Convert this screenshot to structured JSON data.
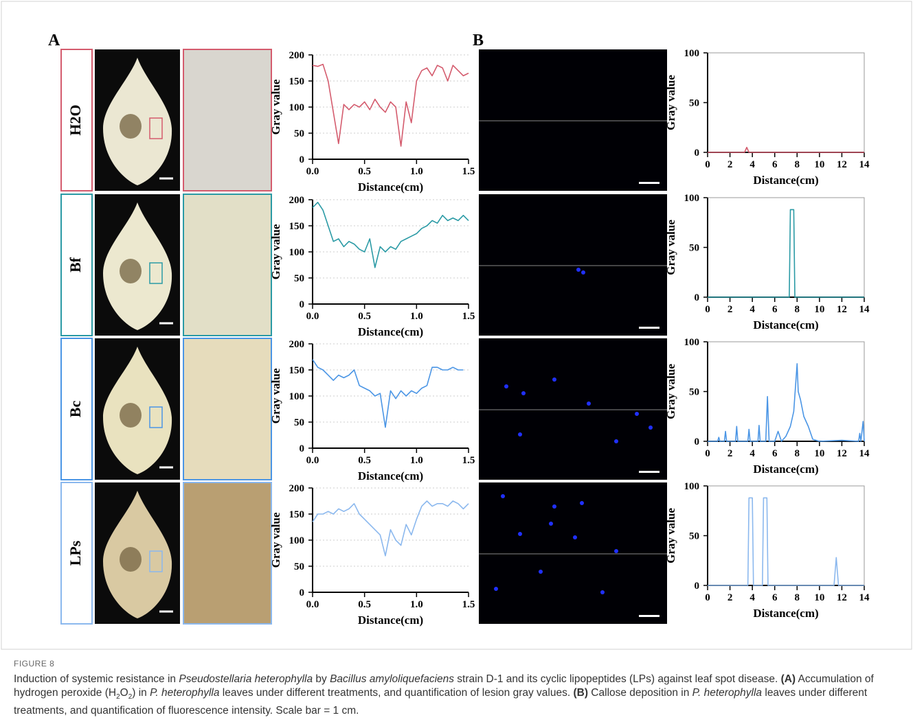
{
  "panel_labels": [
    "A",
    "B"
  ],
  "rows": [
    "H2O",
    "Bf",
    "Bc",
    "LPs"
  ],
  "chart_data": [
    {
      "type": "line",
      "xlabel": "Distance(cm)",
      "ylabel": "Gray value",
      "xlim": [
        0,
        1.5
      ],
      "ylim": [
        0,
        200
      ],
      "xticks": [
        {
          "value": 0,
          "label": "0.0"
        },
        0.5,
        {
          "value": 1,
          "label": "1.0"
        },
        1.5
      ],
      "yticks": [
        0,
        50,
        100,
        150,
        200
      ],
      "grid": true,
      "box": false,
      "x": [
        0,
        0.05,
        0.1,
        0.15,
        0.2,
        0.25,
        0.3,
        0.35,
        0.4,
        0.45,
        0.5,
        0.55,
        0.6,
        0.65,
        0.7,
        0.75,
        0.8,
        0.85,
        0.9,
        0.95,
        1.0,
        1.05,
        1.1,
        1.15,
        1.2,
        1.25,
        1.3,
        1.35,
        1.4,
        1.45,
        1.5
      ],
      "series": [
        {
          "color": "#d45b6d",
          "values": [
            180,
            178,
            182,
            150,
            90,
            30,
            105,
            95,
            105,
            100,
            110,
            95,
            115,
            100,
            90,
            110,
            100,
            25,
            110,
            70,
            150,
            170,
            175,
            160,
            180,
            175,
            150,
            180,
            170,
            160,
            165
          ]
        }
      ]
    },
    {
      "type": "line",
      "xlabel": "Distance(cm)",
      "ylabel": "Gray value",
      "xlim": [
        0,
        1.5
      ],
      "ylim": [
        0,
        200
      ],
      "xticks": [
        {
          "value": 0,
          "label": "0.0"
        },
        0.5,
        {
          "value": 1,
          "label": "1.0"
        },
        1.5
      ],
      "yticks": [
        0,
        50,
        100,
        150,
        200
      ],
      "grid": true,
      "box": false,
      "x": [
        0,
        0.05,
        0.1,
        0.15,
        0.2,
        0.25,
        0.3,
        0.35,
        0.4,
        0.45,
        0.5,
        0.55,
        0.6,
        0.65,
        0.7,
        0.75,
        0.8,
        0.85,
        0.9,
        0.95,
        1.0,
        1.05,
        1.1,
        1.15,
        1.2,
        1.25,
        1.3,
        1.35,
        1.4,
        1.45,
        1.5
      ],
      "series": [
        {
          "color": "#2a9aa5",
          "values": [
            185,
            195,
            180,
            150,
            120,
            125,
            110,
            120,
            115,
            105,
            100,
            125,
            70,
            110,
            100,
            110,
            105,
            120,
            125,
            130,
            135,
            145,
            150,
            160,
            155,
            170,
            160,
            165,
            160,
            170,
            160
          ]
        }
      ]
    },
    {
      "type": "line",
      "xlabel": "Distance(cm)",
      "ylabel": "Gray value",
      "xlim": [
        0,
        1.5
      ],
      "ylim": [
        0,
        200
      ],
      "xticks": [
        {
          "value": 0,
          "label": "0.0"
        },
        0.5,
        {
          "value": 1,
          "label": "1.0"
        },
        1.5
      ],
      "yticks": [
        0,
        50,
        100,
        150,
        200
      ],
      "grid": true,
      "box": false,
      "x": [
        0,
        0.05,
        0.1,
        0.15,
        0.2,
        0.25,
        0.3,
        0.35,
        0.4,
        0.45,
        0.5,
        0.55,
        0.6,
        0.65,
        0.7,
        0.75,
        0.8,
        0.85,
        0.9,
        0.95,
        1.0,
        1.05,
        1.1,
        1.15,
        1.2,
        1.25,
        1.3,
        1.35,
        1.4,
        1.45
      ],
      "series": [
        {
          "color": "#4a95e5",
          "values": [
            170,
            155,
            150,
            140,
            130,
            140,
            135,
            140,
            150,
            120,
            115,
            110,
            100,
            105,
            40,
            110,
            95,
            110,
            100,
            110,
            105,
            115,
            120,
            155,
            155,
            150,
            150,
            155,
            150,
            150
          ]
        }
      ]
    },
    {
      "type": "line",
      "xlabel": "Distance(cm)",
      "ylabel": "Gray value",
      "xlim": [
        0,
        1.5
      ],
      "ylim": [
        0,
        200
      ],
      "xticks": [
        {
          "value": 0,
          "label": "0.0"
        },
        0.5,
        {
          "value": 1,
          "label": "1.0"
        },
        1.5
      ],
      "yticks": [
        0,
        50,
        100,
        150,
        200
      ],
      "grid": true,
      "box": false,
      "x": [
        0,
        0.05,
        0.1,
        0.15,
        0.2,
        0.25,
        0.3,
        0.35,
        0.4,
        0.45,
        0.5,
        0.55,
        0.6,
        0.65,
        0.7,
        0.75,
        0.8,
        0.85,
        0.9,
        0.95,
        1.0,
        1.05,
        1.1,
        1.15,
        1.2,
        1.25,
        1.3,
        1.35,
        1.4,
        1.45,
        1.5
      ],
      "series": [
        {
          "color": "#8bb8ee",
          "values": [
            135,
            150,
            150,
            155,
            150,
            160,
            155,
            160,
            170,
            150,
            140,
            130,
            120,
            110,
            70,
            120,
            100,
            90,
            130,
            110,
            140,
            165,
            175,
            165,
            170,
            170,
            165,
            175,
            170,
            160,
            170
          ]
        }
      ]
    },
    {
      "type": "line",
      "xlabel": "Distance(cm)",
      "ylabel": "Gray value",
      "xlim": [
        0,
        14
      ],
      "ylim": [
        0,
        100
      ],
      "xticks": [
        0,
        2,
        4,
        6,
        8,
        10,
        12,
        14
      ],
      "yticks": [
        0,
        50,
        100
      ],
      "grid": false,
      "box": true,
      "x": [
        0,
        3.3,
        3.5,
        3.7,
        14
      ],
      "series": [
        {
          "color": "#d45b6d",
          "values": [
            0,
            0,
            5,
            0,
            0
          ]
        }
      ]
    },
    {
      "type": "line",
      "xlabel": "Distance(cm)",
      "ylabel": "Gray value",
      "xlim": [
        0,
        14
      ],
      "ylim": [
        0,
        100
      ],
      "xticks": [
        0,
        2,
        4,
        6,
        8,
        10,
        12,
        14
      ],
      "yticks": [
        0,
        50,
        100
      ],
      "grid": false,
      "box": true,
      "x": [
        0,
        7.3,
        7.4,
        7.7,
        7.8,
        14
      ],
      "series": [
        {
          "color": "#2a9aa5",
          "values": [
            0,
            0,
            88,
            88,
            0,
            0
          ]
        }
      ]
    },
    {
      "type": "line",
      "xlabel": "Distance(cm)",
      "ylabel": "Gray value",
      "xlim": [
        0,
        14
      ],
      "ylim": [
        0,
        100
      ],
      "xticks": [
        0,
        2,
        4,
        6,
        8,
        10,
        12,
        14
      ],
      "yticks": [
        0,
        50,
        100
      ],
      "grid": false,
      "box": true,
      "x": [
        0,
        0.9,
        1.0,
        1.1,
        1.5,
        1.6,
        1.7,
        2.5,
        2.6,
        2.7,
        3.6,
        3.7,
        3.8,
        4.5,
        4.6,
        4.7,
        5.2,
        5.35,
        5.5,
        6,
        6.3,
        6.6,
        7,
        7.4,
        7.7,
        8.0,
        8.1,
        8.3,
        8.6,
        9.0,
        9.4,
        10,
        12,
        13.5,
        13.6,
        13.7,
        13.9,
        14.0
      ],
      "series": [
        {
          "color": "#4a95e5",
          "values": [
            0,
            0,
            4,
            0,
            0,
            10,
            0,
            0,
            15,
            0,
            0,
            12,
            0,
            0,
            16,
            0,
            0,
            45,
            0,
            0,
            10,
            0,
            5,
            15,
            30,
            78,
            50,
            42,
            25,
            15,
            2,
            0,
            1,
            0,
            8,
            0,
            20,
            0
          ]
        }
      ]
    },
    {
      "type": "line",
      "xlabel": "Distance(cm)",
      "ylabel": "Gray value",
      "xlim": [
        0,
        14
      ],
      "ylim": [
        0,
        100
      ],
      "xticks": [
        0,
        2,
        4,
        6,
        8,
        10,
        12,
        14
      ],
      "yticks": [
        0,
        50,
        100
      ],
      "grid": false,
      "box": true,
      "x": [
        0,
        3.6,
        3.7,
        4.0,
        4.1,
        4.9,
        5.0,
        5.3,
        5.4,
        11.3,
        11.5,
        11.7,
        14
      ],
      "series": [
        {
          "color": "#8bb8ee",
          "values": [
            0,
            0,
            88,
            88,
            0,
            0,
            88,
            88,
            0,
            0,
            28,
            0,
            0
          ]
        }
      ]
    }
  ],
  "caption": {
    "label": "FIGURE 8",
    "segments": [
      {
        "text": "Induction of systemic resistance in "
      },
      {
        "text": "Pseudostellaria heterophylla",
        "style": "italic"
      },
      {
        "text": " by "
      },
      {
        "text": "Bacillus amyloliquefaciens",
        "style": "italic"
      },
      {
        "text": " strain D-1 and its cyclic lipopeptides (LPs) against leaf spot disease. "
      },
      {
        "text": "(A)",
        "style": "bold"
      },
      {
        "text": " Accumulation of hydrogen peroxide (H"
      },
      {
        "text": "2",
        "style": "sub"
      },
      {
        "text": "O"
      },
      {
        "text": "2",
        "style": "sub"
      },
      {
        "text": ") in "
      },
      {
        "text": "P. heterophylla",
        "style": "italic"
      },
      {
        "text": " leaves under different treatments, and quantification of lesion gray values. "
      },
      {
        "text": "(B)",
        "style": "bold"
      },
      {
        "text": " Callose deposition in "
      },
      {
        "text": "P. heterophylla",
        "style": "italic"
      },
      {
        "text": " leaves under different treatments, and quantification of fluorescence intensity. Scale bar = 1 cm."
      }
    ]
  }
}
